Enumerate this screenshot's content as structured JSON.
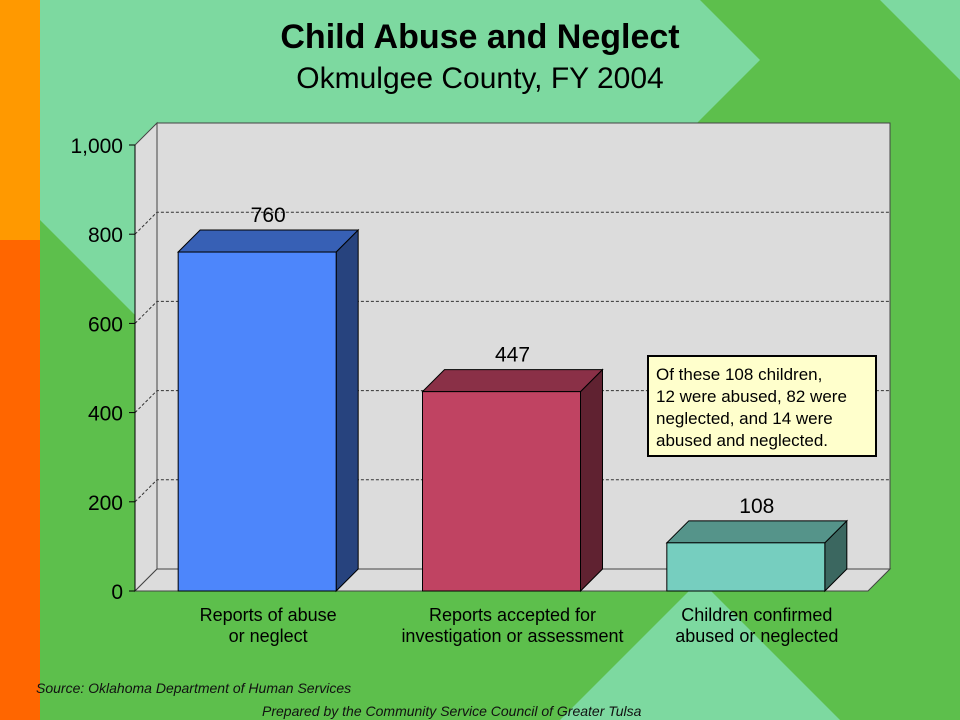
{
  "theme": {
    "background": "#5dbf4c",
    "light_band": "#7dd9a0",
    "sidebar_top": "#ff9900",
    "sidebar_bottom": "#ff6600"
  },
  "header": {
    "title": "Child Abuse and Neglect",
    "subtitle": "Okmulgee County, FY 2004"
  },
  "chart_data": {
    "type": "bar",
    "title": "Child Abuse and Neglect",
    "subtitle": "Okmulgee County, FY 2004",
    "categories": [
      [
        "Reports of abuse",
        "or neglect"
      ],
      [
        "Reports accepted for",
        "investigation or assessment"
      ],
      [
        "Children confirmed",
        "abused or neglected"
      ]
    ],
    "values": [
      760,
      447,
      108
    ],
    "value_labels": [
      "760",
      "447",
      "108"
    ],
    "colors": [
      "#4d86fb",
      "#c04362",
      "#76cebf"
    ],
    "ylim": [
      0,
      1000
    ],
    "yticks": [
      0,
      200,
      400,
      600,
      800,
      1000
    ],
    "ytick_labels": [
      "0",
      "200",
      "400",
      "600",
      "800",
      "1,000"
    ],
    "grid": true,
    "annotation": [
      "Of these 108 children,",
      "12 were abused, 82 were",
      "neglected, and 14 were",
      "abused and neglected."
    ]
  },
  "footer": {
    "source": "Source:  Oklahoma Department of Human Services",
    "prepared": "Prepared by the Community Service Council of Greater Tulsa"
  }
}
